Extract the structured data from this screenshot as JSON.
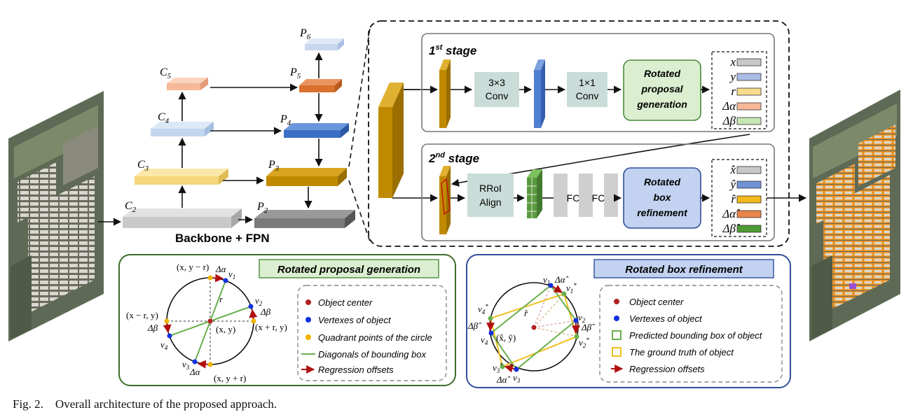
{
  "backbone": {
    "c2": "C",
    "c2_sub": "2",
    "c3": "C",
    "c3_sub": "3",
    "c4": "C",
    "c4_sub": "4",
    "c5": "C",
    "c5_sub": "5",
    "p2": "P",
    "p2_sub": "2",
    "p3": "P",
    "p3_sub": "3",
    "p4": "P",
    "p4_sub": "4",
    "p5": "P",
    "p5_sub": "5",
    "p6": "P",
    "p6_sub": "6",
    "label": "Backbone + FPN"
  },
  "stage1": {
    "title_num": "1",
    "title_sup": "st",
    "title_word": " stage",
    "conv3_a": "3×3",
    "conv3_b": "Conv",
    "conv1_a": "1×1",
    "conv1_b": "Conv",
    "rpg_a": "Rotated",
    "rpg_b": "proposal",
    "rpg_c": "generation",
    "outputs": [
      "x",
      "y",
      "r",
      "Δα",
      "Δβ"
    ]
  },
  "stage2": {
    "title_num": "2",
    "title_sup": "nd",
    "title_word": " stage",
    "rroi_a": "RRoI",
    "rroi_b": "Align",
    "fc": "FC",
    "rbr_a": "Rotated",
    "rbr_b": "box",
    "rbr_c": "refinement",
    "outputs": [
      "x̂",
      "ŷ",
      "r̂",
      "Δα̂",
      "Δβ̂"
    ]
  },
  "left_panel": {
    "title": "Rotated proposal generation",
    "lbl_top": "(x, y − r)",
    "lbl_left": "(x − r, y)",
    "lbl_right": "(x + r, y)",
    "lbl_bottom": "(x, y + r)",
    "lbl_center": "(x, y)",
    "lbl_r": "r",
    "lbl_v1": "v",
    "lbl_v1_sub": "1",
    "lbl_v2": "v",
    "lbl_v2_sub": "2",
    "lbl_v3": "v",
    "lbl_v3_sub": "3",
    "lbl_v4": "v",
    "lbl_v4_sub": "4",
    "lbl_da_top": "Δα",
    "lbl_da_bot": "Δα",
    "lbl_db_right": "Δβ",
    "lbl_db_left": "Δβ",
    "legend": [
      "Object center",
      "Vertexes of object",
      "Quadrant points of the circle",
      "Diagonals of bounding box",
      "Regression offsets"
    ]
  },
  "right_panel": {
    "title": "Rotated box refinement",
    "lbl_center": "(x̂, ŷ)",
    "lbl_r": "r̂",
    "lbl_da_top": "Δα̂",
    "lbl_da_bot": "Δα̂",
    "lbl_db_right": "Δβ̂",
    "lbl_db_left": "Δβ̂",
    "lbl_v1": "v",
    "lbl_v1_sub": "1",
    "lbl_v2": "v",
    "lbl_v2_sub": "2",
    "lbl_v3": "v",
    "lbl_v3_sub": "3",
    "lbl_v4": "v",
    "lbl_v4_sub": "4",
    "lbl_v1s": "v",
    "lbl_v1s_sub": "1",
    "lbl_v1s_sup": "*",
    "lbl_v2s": "v",
    "lbl_v2s_sub": "2",
    "lbl_v2s_sup": "*",
    "lbl_v3s": "v",
    "lbl_v3s_sub": "3",
    "lbl_v3s_sup": "*",
    "lbl_v4s": "v",
    "lbl_v4s_sub": "4",
    "lbl_v4s_sup": "*",
    "legend": [
      "Object center",
      "Vertexes of object",
      "Predicted bounding box of object",
      "The ground truth of object",
      "Regression offsets"
    ]
  },
  "caption": "Fig. 2.    Overall architecture of the proposed approach.",
  "colors": {
    "gold": "#c08a00",
    "blue_feat": "#4f7fd0",
    "green_feat": "#5a9a3e",
    "orange_p5": "#d97a3a",
    "panel_green_border": "#3d6b2a",
    "panel_blue_border": "#2f4f9a",
    "center_red": "#b22222",
    "vertex_blue": "#1030e0",
    "quadrant_yellow": "#f0b400",
    "diag_green": "#6ab04c",
    "gt_yellow": "#f0c020"
  }
}
